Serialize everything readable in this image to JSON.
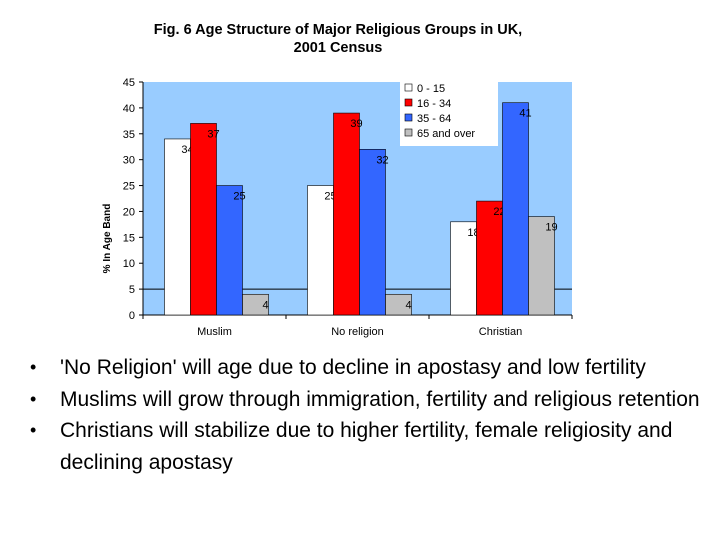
{
  "chart_data": {
    "type": "bar",
    "title_lines": [
      "Fig. 6 Age Structure of Major Religious Groups in UK,",
      "2001 Census"
    ],
    "ylabel": "% In Age Band",
    "xlabel": "",
    "ylim": [
      0,
      45
    ],
    "yticks": [
      0,
      5,
      10,
      15,
      20,
      25,
      30,
      35,
      40,
      45
    ],
    "grid": false,
    "legend_position": "top-right",
    "categories": [
      "Muslim",
      "No religion",
      "Christian"
    ],
    "series": [
      {
        "name": "0 - 15",
        "color": "#ffffff",
        "values": [
          34,
          25,
          18
        ]
      },
      {
        "name": "16 - 34",
        "color": "#ff0000",
        "values": [
          37,
          39,
          22
        ]
      },
      {
        "name": "35 - 64",
        "color": "#3366ff",
        "values": [
          25,
          32,
          41
        ]
      },
      {
        "name": "65 and over",
        "color": "#c0c0c0",
        "values": [
          4,
          4,
          19
        ]
      }
    ],
    "plot_background": "#99ccff"
  },
  "bullets": [
    "'No Religion' will age due to decline in apostasy and low fertility",
    "Muslims will grow through immigration, fertility and religious retention",
    "Christians will stabilize due to higher fertility, female religiosity and declining apostasy"
  ]
}
